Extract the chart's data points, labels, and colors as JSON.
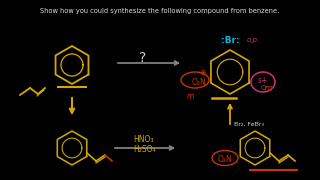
{
  "bg_color": "#000000",
  "title": "Show how you could synthesize the following compound from benzene.",
  "title_color": "#dddddd",
  "title_fontsize": 4.8,
  "yellow": "#d4a800",
  "red": "#cc3300",
  "cyan": "#00bbdd",
  "pink": "#cc3377",
  "white": "#cccccc",
  "gray": "#888888",
  "label_br": ":Br:",
  "label_op": "o,p.",
  "label_no2_circ": "O₂N",
  "label_br2febr3": "Br₂, FeBr₃",
  "label_hno3": "HNO₃",
  "label_h2so4": "H₂SO₄",
  "label_m": "m",
  "label_s": "s+",
  "label_O": "O"
}
